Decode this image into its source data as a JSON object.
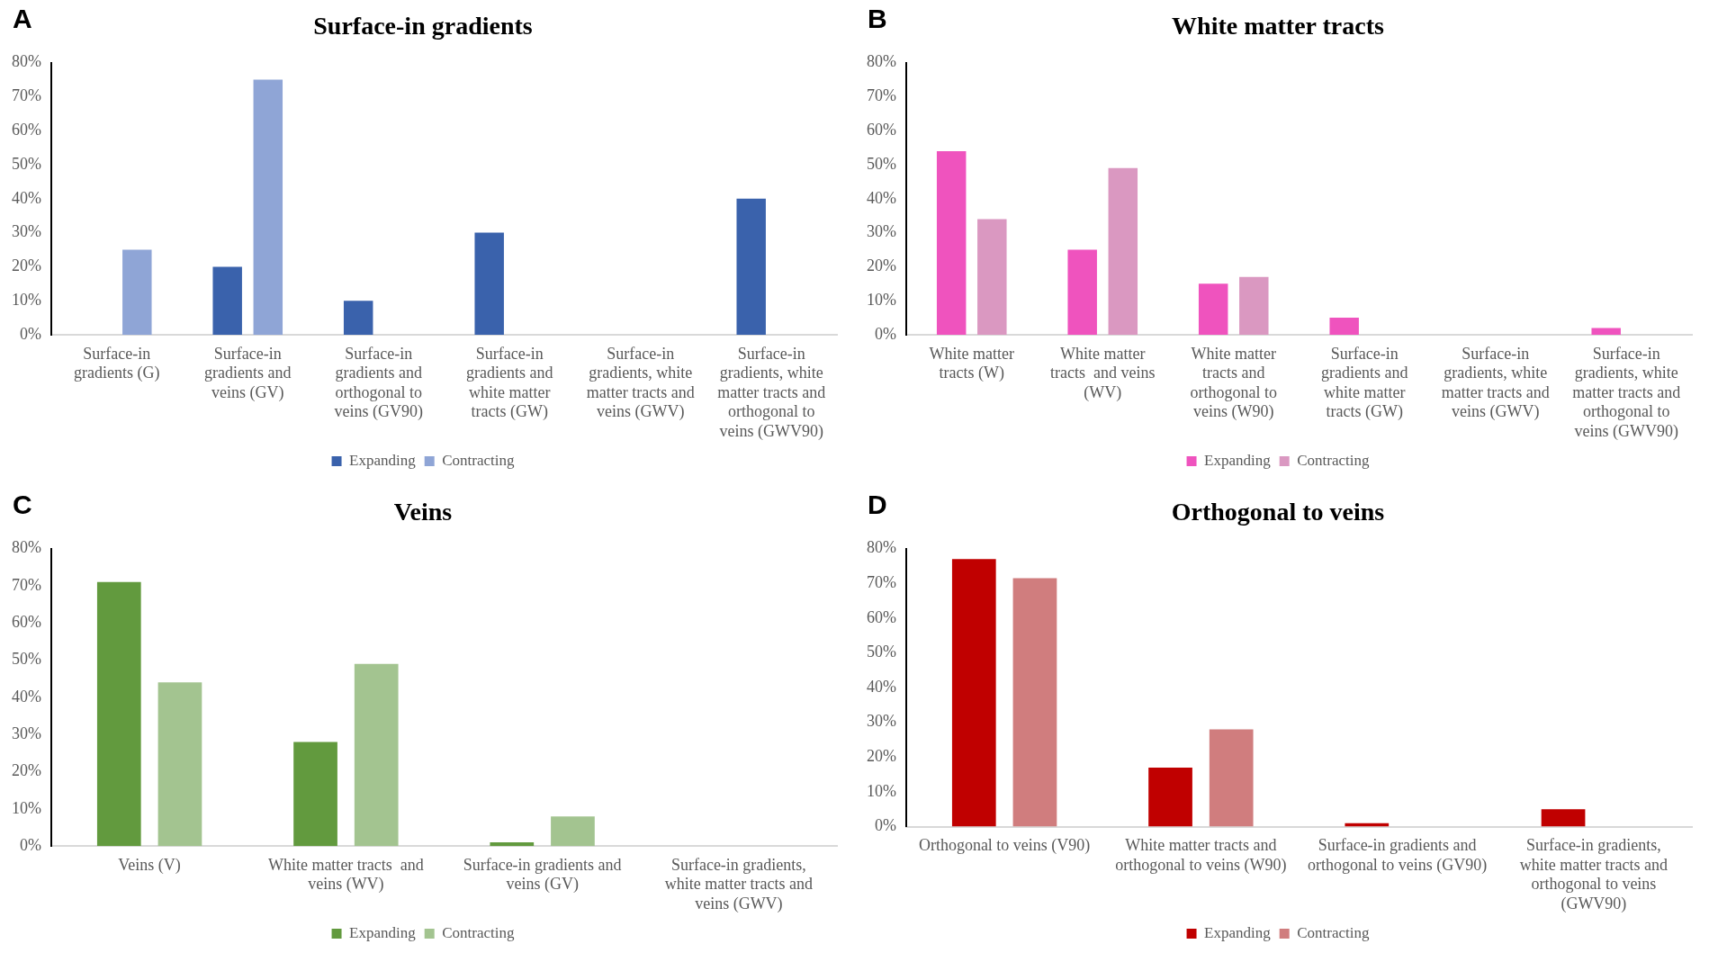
{
  "chart_data": [
    {
      "type": "bar",
      "title": "Surface-in gradients",
      "annotations": [
        "A"
      ],
      "categories": [
        "Surface-in gradients (G)",
        "Surface-in gradients and veins (GV)",
        "Surface-in gradients and orthogonal to veins (GV90)",
        "Surface-in gradients and white matter tracts (GW)",
        "Surface-in gradients, white matter tracts and veins (GWV)",
        "Surface-in gradients, white matter tracts and orthogonal to veins (GWV90)"
      ],
      "series": [
        {
          "name": "Expanding",
          "color": "#3a62ac",
          "values": [
            0,
            20,
            10,
            30,
            0,
            40
          ]
        },
        {
          "name": "Contracting",
          "color": "#8fa5d6",
          "values": [
            25,
            75,
            0,
            0,
            0,
            0
          ]
        }
      ],
      "ylim": [
        0,
        80
      ],
      "yticks": [
        {
          "value": 0,
          "label": "0%"
        },
        {
          "value": 10,
          "label": "10%"
        },
        {
          "value": 20,
          "label": "20%"
        },
        {
          "value": 30,
          "label": "30%"
        },
        {
          "value": 40,
          "label": "40%"
        },
        {
          "value": 50,
          "label": "50%"
        },
        {
          "value": 60,
          "label": "60%"
        },
        {
          "value": 70,
          "label": "70%"
        },
        {
          "value": 80,
          "label": "80%"
        }
      ],
      "legend": "bottom"
    },
    {
      "type": "bar",
      "title": "White matter tracts",
      "annotations": [
        "B"
      ],
      "categories": [
        "White matter tracts (W)",
        "White matter tracts  and veins (WV)",
        "White matter tracts and orthogonal to veins (W90)",
        "Surface-in gradients and white matter tracts (GW)",
        "Surface-in gradients, white matter tracts and veins (GWV)",
        "Surface-in gradients, white matter tracts and orthogonal to veins (GWV90)"
      ],
      "series": [
        {
          "name": "Expanding",
          "color": "#ef53be",
          "values": [
            54,
            25,
            15,
            5,
            0,
            2
          ]
        },
        {
          "name": "Contracting",
          "color": "#da98c1",
          "values": [
            34,
            49,
            17,
            0,
            0,
            0
          ]
        }
      ],
      "ylim": [
        0,
        80
      ],
      "yticks": [
        {
          "value": 0,
          "label": "0%"
        },
        {
          "value": 10,
          "label": "10%"
        },
        {
          "value": 20,
          "label": "20%"
        },
        {
          "value": 30,
          "label": "30%"
        },
        {
          "value": 40,
          "label": "40%"
        },
        {
          "value": 50,
          "label": "50%"
        },
        {
          "value": 60,
          "label": "60%"
        },
        {
          "value": 70,
          "label": "70%"
        },
        {
          "value": 80,
          "label": "80%"
        }
      ],
      "legend": "bottom"
    },
    {
      "type": "bar",
      "title": "Veins",
      "annotations": [
        "C"
      ],
      "categories": [
        "Veins (V)",
        "White matter tracts  and veins (WV)",
        "Surface-in gradients and veins (GV)",
        "Surface-in gradients, white matter tracts and veins (GWV)"
      ],
      "series": [
        {
          "name": "Expanding",
          "color": "#629a3e",
          "values": [
            71,
            28,
            1,
            0
          ]
        },
        {
          "name": "Contracting",
          "color": "#a3c490",
          "values": [
            44,
            49,
            8,
            0
          ]
        }
      ],
      "ylim": [
        0,
        80
      ],
      "yticks": [
        {
          "value": 0,
          "label": "0%"
        },
        {
          "value": 10,
          "label": "10%"
        },
        {
          "value": 20,
          "label": "20%"
        },
        {
          "value": 30,
          "label": "30%"
        },
        {
          "value": 40,
          "label": "40%"
        },
        {
          "value": 50,
          "label": "50%"
        },
        {
          "value": 60,
          "label": "60%"
        },
        {
          "value": 70,
          "label": "70%"
        },
        {
          "value": 80,
          "label": "80%"
        }
      ],
      "legend": "bottom"
    },
    {
      "type": "bar",
      "title": "Orthogonal to veins",
      "annotations": [
        "D"
      ],
      "categories": [
        "Orthogonal to veins (V90)",
        "White matter tracts and orthogonal to veins (W90)",
        "Surface-in gradients and orthogonal to veins (GV90)",
        "Surface-in gradients, white matter tracts and orthogonal to veins (GWV90)"
      ],
      "series": [
        {
          "name": "Expanding",
          "color": "#c00000",
          "values": [
            77,
            17,
            1,
            5
          ]
        },
        {
          "name": "Contracting",
          "color": "#d07d7e",
          "values": [
            71.5,
            28,
            0,
            0
          ]
        }
      ],
      "ylim": [
        0,
        80
      ],
      "yticks": [
        {
          "value": 0,
          "label": "0%"
        },
        {
          "value": 10,
          "label": "10%"
        },
        {
          "value": 20,
          "label": "20%"
        },
        {
          "value": 30,
          "label": "30%"
        },
        {
          "value": 40,
          "label": "40%"
        },
        {
          "value": 50,
          "label": "50%"
        },
        {
          "value": 60,
          "label": "60%"
        },
        {
          "value": 70,
          "label": "70%"
        },
        {
          "value": 80,
          "label": "80%"
        }
      ],
      "legend": "bottom"
    }
  ]
}
